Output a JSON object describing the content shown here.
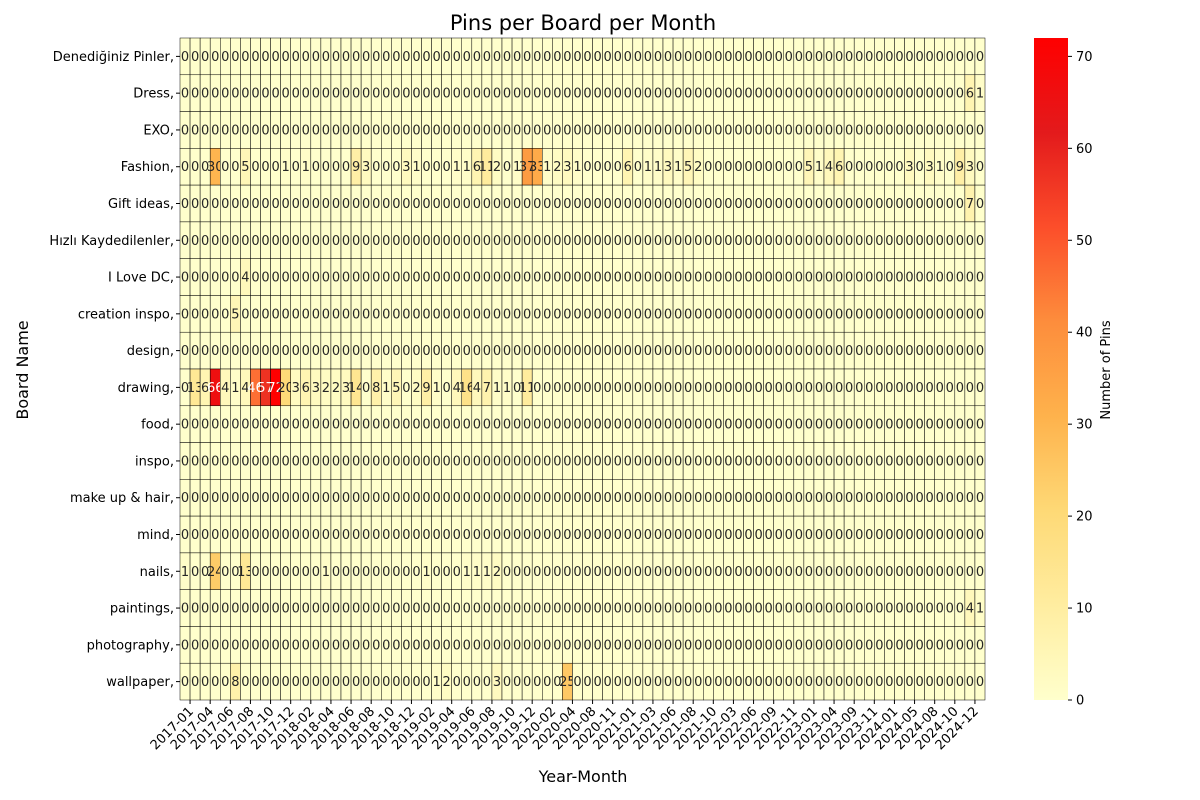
{
  "chart_data": {
    "type": "heatmap",
    "title": "Pins per Board per Month",
    "xlabel": "Year-Month",
    "ylabel": "Board Name",
    "colorbar_label": "Number of Pins",
    "colorbar_ticks": [
      0,
      10,
      20,
      30,
      40,
      50,
      60,
      70
    ],
    "value_range": [
      0,
      72
    ],
    "colormap": [
      "#ffffcc",
      "#ffeda0",
      "#fed976",
      "#feb24c",
      "#fd8d3c",
      "#fc4e2a",
      "#e31a1c",
      "#ff0000"
    ],
    "cell_text_dark": "#262626",
    "cell_text_light": "#ffffff",
    "x_tick_labels": [
      "2017-01",
      "2017-04",
      "2017-06",
      "2017-08",
      "2017-10",
      "2017-12",
      "2018-02",
      "2018-04",
      "2018-06",
      "2018-08",
      "2018-10",
      "2018-12",
      "2019-02",
      "2019-04",
      "2019-06",
      "2019-08",
      "2019-10",
      "2019-12",
      "2020-02",
      "2020-04",
      "2020-08",
      "2020-11",
      "2021-01",
      "2021-03",
      "2021-06",
      "2021-08",
      "2021-10",
      "2022-03",
      "2022-06",
      "2022-09",
      "2022-11",
      "2023-01",
      "2023-04",
      "2023-09",
      "2023-11",
      "2024-01",
      "2024-05",
      "2024-08",
      "2024-10",
      "2024-12"
    ],
    "boards": [
      "Denediğiniz Pinler,",
      "Dress,",
      "EXO,",
      "Fashion,",
      "Gift ideas,",
      "Hızlı Kaydedilenler,",
      "I Love DC,",
      "creation inspo,",
      "design,",
      "drawing,",
      "food,",
      "inspo,",
      "make up & hair,",
      "mind,",
      "nails,",
      "paintings,",
      "photography,",
      "wallpaper,"
    ],
    "values": [
      [
        0,
        0,
        0,
        0,
        0,
        0,
        0,
        0,
        0,
        0,
        0,
        0,
        0,
        0,
        0,
        0,
        0,
        0,
        0,
        0,
        0,
        0,
        0,
        0,
        0,
        0,
        0,
        0,
        0,
        0,
        0,
        0,
        0,
        0,
        0,
        0,
        0,
        0,
        0,
        0,
        0,
        0,
        0,
        0,
        0,
        0,
        0,
        0,
        0,
        0,
        0,
        0,
        0,
        0,
        0,
        0,
        0,
        0,
        0,
        0,
        0,
        0,
        0,
        0,
        0,
        0,
        0,
        0,
        0,
        0,
        0,
        0,
        0,
        0,
        0,
        0,
        0,
        0,
        0,
        0
      ],
      [
        0,
        0,
        0,
        0,
        0,
        0,
        0,
        0,
        0,
        0,
        0,
        0,
        0,
        0,
        0,
        0,
        0,
        0,
        0,
        0,
        0,
        0,
        0,
        0,
        0,
        0,
        0,
        0,
        0,
        0,
        0,
        0,
        0,
        0,
        0,
        0,
        0,
        0,
        0,
        0,
        0,
        0,
        0,
        0,
        0,
        0,
        0,
        0,
        0,
        0,
        0,
        0,
        0,
        0,
        0,
        0,
        0,
        0,
        0,
        0,
        0,
        0,
        0,
        0,
        0,
        0,
        0,
        0,
        0,
        0,
        0,
        0,
        0,
        0,
        0,
        0,
        0,
        0,
        6,
        1
      ],
      [
        0,
        0,
        0,
        0,
        0,
        0,
        0,
        0,
        0,
        0,
        0,
        0,
        0,
        0,
        0,
        0,
        0,
        0,
        0,
        0,
        0,
        0,
        0,
        0,
        0,
        0,
        0,
        0,
        0,
        0,
        0,
        0,
        0,
        0,
        0,
        0,
        0,
        0,
        0,
        0,
        0,
        0,
        0,
        0,
        0,
        0,
        0,
        0,
        0,
        0,
        0,
        0,
        0,
        0,
        0,
        0,
        0,
        0,
        0,
        0,
        0,
        0,
        0,
        0,
        0,
        0,
        0,
        0,
        0,
        0,
        0,
        0,
        0,
        0,
        0,
        0,
        0,
        0,
        0,
        0
      ],
      [
        0,
        0,
        0,
        30,
        0,
        0,
        5,
        0,
        0,
        0,
        1,
        0,
        1,
        0,
        0,
        0,
        0,
        9,
        3,
        0,
        0,
        0,
        3,
        1,
        0,
        0,
        0,
        1,
        1,
        6,
        11,
        2,
        0,
        1,
        37,
        33,
        1,
        2,
        3,
        1,
        0,
        0,
        0,
        0,
        6,
        0,
        1,
        1,
        3,
        1,
        5,
        2,
        0,
        0,
        0,
        0,
        0,
        0,
        0,
        0,
        0,
        0,
        5,
        1,
        4,
        6,
        0,
        0,
        0,
        0,
        0,
        0,
        3,
        0,
        3,
        1,
        0,
        9,
        3,
        0
      ],
      [
        0,
        0,
        0,
        0,
        0,
        0,
        0,
        0,
        0,
        0,
        0,
        0,
        0,
        0,
        0,
        0,
        0,
        0,
        0,
        0,
        0,
        0,
        0,
        0,
        0,
        0,
        0,
        0,
        0,
        0,
        0,
        0,
        0,
        0,
        0,
        0,
        0,
        0,
        0,
        0,
        0,
        0,
        0,
        0,
        0,
        0,
        0,
        0,
        0,
        0,
        0,
        0,
        0,
        0,
        0,
        0,
        0,
        0,
        0,
        0,
        0,
        0,
        0,
        0,
        0,
        0,
        0,
        0,
        0,
        0,
        0,
        0,
        0,
        0,
        0,
        0,
        0,
        0,
        7,
        0
      ],
      [
        0,
        0,
        0,
        0,
        0,
        0,
        0,
        0,
        0,
        0,
        0,
        0,
        0,
        0,
        0,
        0,
        0,
        0,
        0,
        0,
        0,
        0,
        0,
        0,
        0,
        0,
        0,
        0,
        0,
        0,
        0,
        0,
        0,
        0,
        0,
        0,
        0,
        0,
        0,
        0,
        0,
        0,
        0,
        0,
        0,
        0,
        0,
        0,
        0,
        0,
        0,
        0,
        0,
        0,
        0,
        0,
        0,
        0,
        0,
        0,
        0,
        0,
        0,
        0,
        0,
        0,
        0,
        0,
        0,
        0,
        0,
        0,
        0,
        0,
        0,
        0,
        0,
        0,
        0,
        0
      ],
      [
        0,
        0,
        0,
        0,
        0,
        0,
        4,
        0,
        0,
        0,
        0,
        0,
        0,
        0,
        0,
        0,
        0,
        0,
        0,
        0,
        0,
        0,
        0,
        0,
        0,
        0,
        0,
        0,
        0,
        0,
        0,
        0,
        0,
        0,
        0,
        0,
        0,
        0,
        0,
        0,
        0,
        0,
        0,
        0,
        0,
        0,
        0,
        0,
        0,
        0,
        0,
        0,
        0,
        0,
        0,
        0,
        0,
        0,
        0,
        0,
        0,
        0,
        0,
        0,
        0,
        0,
        0,
        0,
        0,
        0,
        0,
        0,
        0,
        0,
        0,
        0,
        0,
        0,
        0,
        0
      ],
      [
        0,
        0,
        0,
        0,
        0,
        5,
        0,
        0,
        0,
        0,
        0,
        0,
        0,
        0,
        0,
        0,
        0,
        0,
        0,
        0,
        0,
        0,
        0,
        0,
        0,
        0,
        0,
        0,
        0,
        0,
        0,
        0,
        0,
        0,
        0,
        0,
        0,
        0,
        0,
        0,
        0,
        0,
        0,
        0,
        0,
        0,
        0,
        0,
        0,
        0,
        0,
        0,
        0,
        0,
        0,
        0,
        0,
        0,
        0,
        0,
        0,
        0,
        0,
        0,
        0,
        0,
        0,
        0,
        0,
        0,
        0,
        0,
        0,
        0,
        0,
        0,
        0,
        0,
        0,
        0
      ],
      [
        0,
        0,
        0,
        0,
        0,
        0,
        0,
        0,
        0,
        0,
        0,
        0,
        0,
        0,
        0,
        0,
        0,
        0,
        0,
        0,
        0,
        0,
        0,
        0,
        0,
        0,
        0,
        0,
        0,
        0,
        0,
        0,
        0,
        0,
        0,
        0,
        0,
        0,
        0,
        0,
        0,
        0,
        0,
        0,
        0,
        0,
        0,
        0,
        0,
        0,
        0,
        0,
        0,
        0,
        0,
        0,
        0,
        0,
        0,
        0,
        0,
        0,
        0,
        0,
        0,
        0,
        0,
        0,
        0,
        0,
        0,
        0,
        0,
        0,
        0,
        0,
        0,
        0,
        0,
        0
      ],
      [
        0,
        13,
        6,
        66,
        4,
        1,
        4,
        46,
        57,
        72,
        20,
        3,
        6,
        3,
        2,
        2,
        3,
        14,
        0,
        8,
        1,
        5,
        0,
        2,
        9,
        1,
        0,
        4,
        16,
        4,
        7,
        1,
        1,
        0,
        11,
        0,
        0,
        0,
        0,
        0,
        0,
        0,
        0,
        0,
        0,
        0,
        0,
        0,
        0,
        0,
        0,
        0,
        0,
        0,
        0,
        0,
        0,
        0,
        0,
        0,
        0,
        0,
        0,
        0,
        0,
        0,
        0,
        0,
        0,
        0,
        0,
        0,
        0,
        0,
        0,
        0,
        0,
        0,
        0,
        0
      ],
      [
        0,
        0,
        0,
        0,
        0,
        0,
        0,
        0,
        0,
        0,
        0,
        0,
        0,
        0,
        0,
        0,
        0,
        0,
        0,
        0,
        0,
        0,
        0,
        0,
        0,
        0,
        0,
        0,
        0,
        0,
        0,
        0,
        0,
        0,
        0,
        0,
        0,
        0,
        0,
        0,
        0,
        0,
        0,
        0,
        0,
        0,
        0,
        0,
        0,
        0,
        0,
        0,
        0,
        0,
        0,
        0,
        0,
        0,
        0,
        0,
        0,
        0,
        0,
        0,
        0,
        0,
        0,
        0,
        0,
        0,
        0,
        0,
        0,
        0,
        0,
        0,
        0,
        0,
        0,
        0
      ],
      [
        0,
        0,
        0,
        0,
        0,
        0,
        0,
        0,
        0,
        0,
        0,
        0,
        0,
        0,
        0,
        0,
        0,
        0,
        0,
        0,
        0,
        0,
        0,
        0,
        0,
        0,
        0,
        0,
        0,
        0,
        0,
        0,
        0,
        0,
        0,
        0,
        0,
        0,
        0,
        0,
        0,
        0,
        0,
        0,
        0,
        0,
        0,
        0,
        0,
        0,
        0,
        0,
        0,
        0,
        0,
        0,
        0,
        0,
        0,
        0,
        0,
        0,
        0,
        0,
        0,
        0,
        0,
        0,
        0,
        0,
        0,
        0,
        0,
        0,
        0,
        0,
        0,
        0,
        0,
        0
      ],
      [
        0,
        0,
        0,
        0,
        0,
        0,
        0,
        0,
        0,
        0,
        0,
        0,
        0,
        0,
        0,
        0,
        0,
        0,
        0,
        0,
        0,
        0,
        0,
        0,
        0,
        0,
        0,
        0,
        0,
        0,
        0,
        0,
        0,
        0,
        0,
        0,
        0,
        0,
        0,
        0,
        0,
        0,
        0,
        0,
        0,
        0,
        0,
        0,
        0,
        0,
        0,
        0,
        0,
        0,
        0,
        0,
        0,
        0,
        0,
        0,
        0,
        0,
        0,
        0,
        0,
        0,
        0,
        0,
        0,
        0,
        0,
        0,
        0,
        0,
        0,
        0,
        0,
        0,
        0,
        0
      ],
      [
        0,
        0,
        0,
        0,
        0,
        0,
        0,
        0,
        0,
        0,
        0,
        0,
        0,
        0,
        0,
        0,
        0,
        0,
        0,
        0,
        0,
        0,
        0,
        0,
        0,
        0,
        0,
        0,
        0,
        0,
        0,
        0,
        0,
        0,
        0,
        0,
        0,
        0,
        0,
        0,
        0,
        0,
        0,
        0,
        0,
        0,
        0,
        0,
        0,
        0,
        0,
        0,
        0,
        0,
        0,
        0,
        0,
        0,
        0,
        0,
        0,
        0,
        0,
        0,
        0,
        0,
        0,
        0,
        0,
        0,
        0,
        0,
        0,
        0,
        0,
        0,
        0,
        0,
        0,
        0
      ],
      [
        1,
        0,
        0,
        24,
        0,
        0,
        13,
        0,
        0,
        0,
        0,
        0,
        0,
        0,
        1,
        0,
        0,
        0,
        0,
        0,
        0,
        0,
        0,
        0,
        1,
        0,
        0,
        0,
        1,
        1,
        1,
        2,
        0,
        0,
        0,
        0,
        0,
        0,
        0,
        0,
        0,
        0,
        0,
        0,
        0,
        0,
        0,
        0,
        0,
        0,
        0,
        0,
        0,
        0,
        0,
        0,
        0,
        0,
        0,
        0,
        0,
        0,
        0,
        0,
        0,
        0,
        0,
        0,
        0,
        0,
        0,
        0,
        0,
        0,
        0,
        0,
        0,
        0,
        0,
        0
      ],
      [
        0,
        0,
        0,
        0,
        0,
        0,
        0,
        0,
        0,
        0,
        0,
        0,
        0,
        0,
        0,
        0,
        0,
        0,
        0,
        0,
        0,
        0,
        0,
        0,
        0,
        0,
        0,
        0,
        0,
        0,
        0,
        0,
        0,
        0,
        0,
        0,
        0,
        0,
        0,
        0,
        0,
        0,
        0,
        0,
        0,
        0,
        0,
        0,
        0,
        0,
        0,
        0,
        0,
        0,
        0,
        0,
        0,
        0,
        0,
        0,
        0,
        0,
        0,
        0,
        0,
        0,
        0,
        0,
        0,
        0,
        0,
        0,
        0,
        0,
        0,
        0,
        0,
        0,
        4,
        1
      ],
      [
        0,
        0,
        0,
        0,
        0,
        0,
        0,
        0,
        0,
        0,
        0,
        0,
        0,
        0,
        0,
        0,
        0,
        0,
        0,
        0,
        0,
        0,
        0,
        0,
        0,
        0,
        0,
        0,
        0,
        0,
        0,
        0,
        0,
        0,
        0,
        0,
        0,
        0,
        0,
        0,
        0,
        0,
        0,
        0,
        0,
        0,
        0,
        0,
        0,
        0,
        0,
        0,
        0,
        0,
        0,
        0,
        0,
        0,
        0,
        0,
        0,
        0,
        0,
        0,
        0,
        0,
        0,
        0,
        0,
        0,
        0,
        0,
        0,
        0,
        0,
        0,
        0,
        0,
        0,
        0
      ],
      [
        0,
        0,
        0,
        0,
        0,
        8,
        0,
        0,
        0,
        0,
        0,
        0,
        0,
        0,
        0,
        0,
        0,
        0,
        0,
        0,
        0,
        0,
        0,
        0,
        0,
        1,
        2,
        0,
        0,
        0,
        0,
        3,
        0,
        0,
        0,
        0,
        0,
        0,
        25,
        0,
        0,
        0,
        0,
        0,
        0,
        0,
        0,
        0,
        0,
        0,
        0,
        0,
        0,
        0,
        0,
        0,
        0,
        0,
        0,
        0,
        0,
        0,
        0,
        0,
        0,
        0,
        0,
        0,
        0,
        0,
        0,
        0,
        0,
        0,
        0,
        0,
        0,
        0,
        0,
        0
      ]
    ]
  }
}
